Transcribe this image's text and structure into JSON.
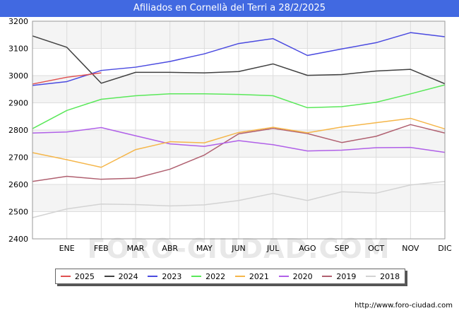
{
  "header": {
    "title": "Afiliados en Cornellà del Terri a 28/2/2025"
  },
  "footer": {
    "source_url": "http://www.foro-ciudad.com"
  },
  "watermark": "FORO-CIUDAD.COM",
  "chart_data": {
    "type": "line",
    "categories": [
      "",
      "ENE",
      "FEB",
      "MAR",
      "ABR",
      "MAY",
      "JUN",
      "JUL",
      "AGO",
      "SEP",
      "OCT",
      "NOV",
      "DIC"
    ],
    "ylim": [
      2400,
      3200
    ],
    "yticks": [
      2400,
      2500,
      2600,
      2700,
      2800,
      2900,
      3000,
      3100,
      3200
    ],
    "grid": true,
    "legend_position": "bottom",
    "series": [
      {
        "name": "2025",
        "color": "#e05050",
        "values": [
          2969,
          2994,
          3010,
          null,
          null,
          null,
          null,
          null,
          null,
          null,
          null,
          null,
          null
        ]
      },
      {
        "name": "2024",
        "color": "#404040",
        "values": [
          3146,
          3104,
          2972,
          3012,
          3012,
          3010,
          3015,
          3043,
          3001,
          3004,
          3017,
          3023,
          2970
        ]
      },
      {
        "name": "2023",
        "color": "#4a4ae0",
        "values": [
          2964,
          2978,
          3019,
          3031,
          3052,
          3080,
          3118,
          3136,
          3074,
          3098,
          3121,
          3158,
          3143
        ]
      },
      {
        "name": "2022",
        "color": "#5ae85a",
        "values": [
          2805,
          2872,
          2913,
          2926,
          2933,
          2933,
          2931,
          2926,
          2882,
          2886,
          2902,
          2933,
          2966
        ]
      },
      {
        "name": "2021",
        "color": "#f5b64a",
        "values": [
          2717,
          2691,
          2663,
          2728,
          2757,
          2753,
          2791,
          2810,
          2790,
          2811,
          2827,
          2843,
          2804
        ]
      },
      {
        "name": "2020",
        "color": "#b060e8",
        "values": [
          2789,
          2793,
          2809,
          2779,
          2749,
          2740,
          2761,
          2746,
          2723,
          2726,
          2735,
          2736,
          2718
        ]
      },
      {
        "name": "2019",
        "color": "#b06070",
        "values": [
          2611,
          2630,
          2619,
          2623,
          2656,
          2708,
          2786,
          2806,
          2787,
          2754,
          2777,
          2820,
          2789
        ]
      },
      {
        "name": "2018",
        "color": "#d3d3d3",
        "values": [
          2478,
          2510,
          2528,
          2526,
          2521,
          2525,
          2541,
          2567,
          2541,
          2573,
          2568,
          2598,
          2611
        ]
      }
    ]
  }
}
